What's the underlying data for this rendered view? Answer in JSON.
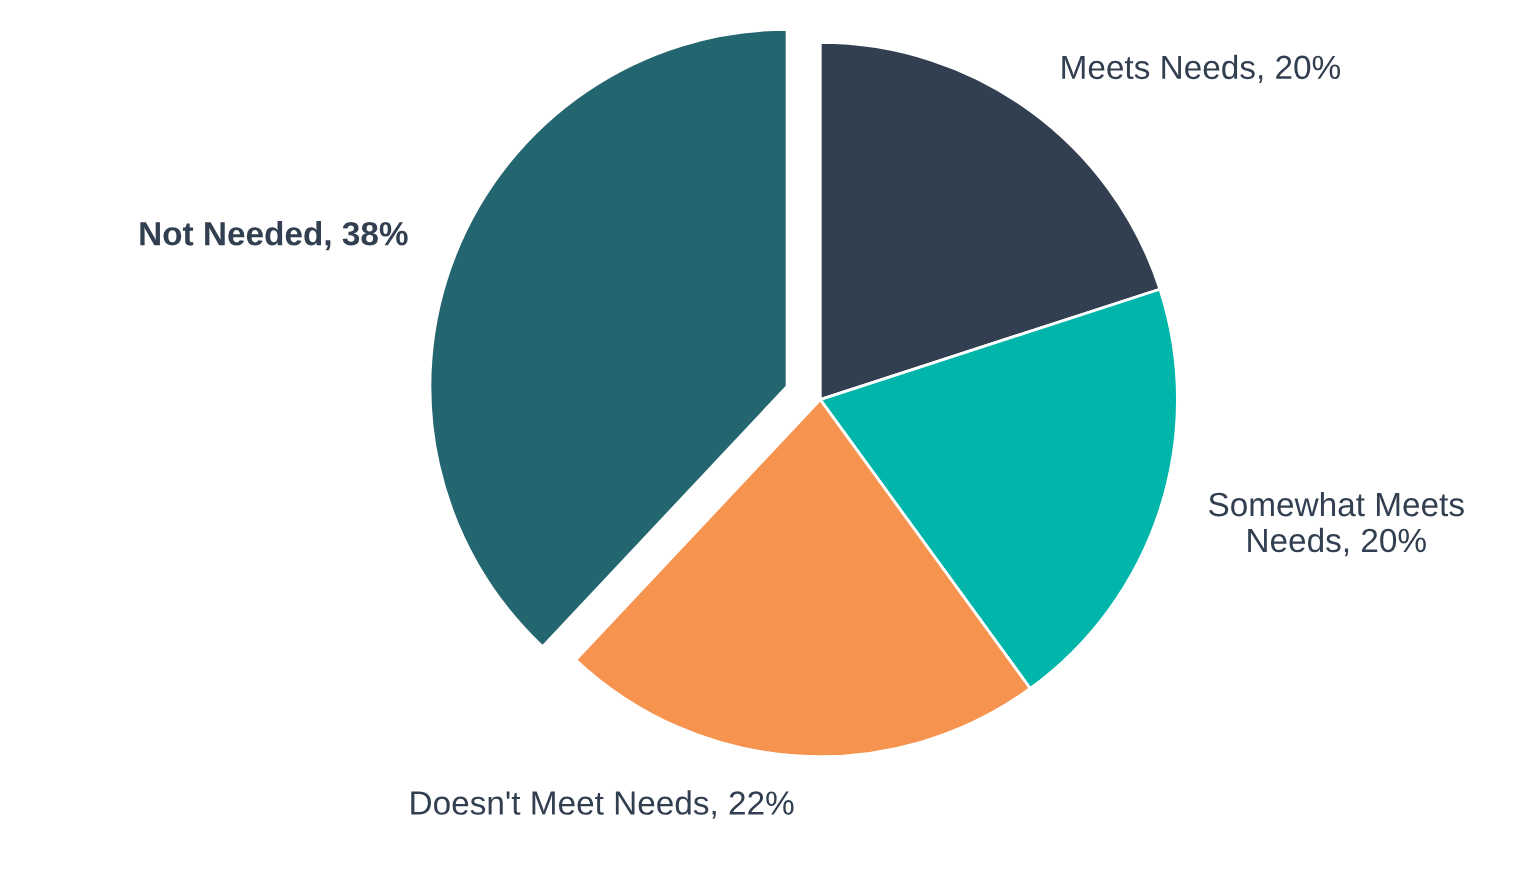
{
  "chart_data": {
    "type": "pie",
    "categories": [
      "Meets Needs",
      "Somewhat Meets Needs",
      "Doesn't Meet Needs",
      "Not Needed"
    ],
    "values": [
      20,
      20,
      22,
      38
    ],
    "value_labels": [
      "20%",
      "20%",
      "22%",
      "38%"
    ],
    "colors": [
      "#323f50",
      "#00b5a9",
      "#f6934f",
      "#24666f"
    ]
  }
}
